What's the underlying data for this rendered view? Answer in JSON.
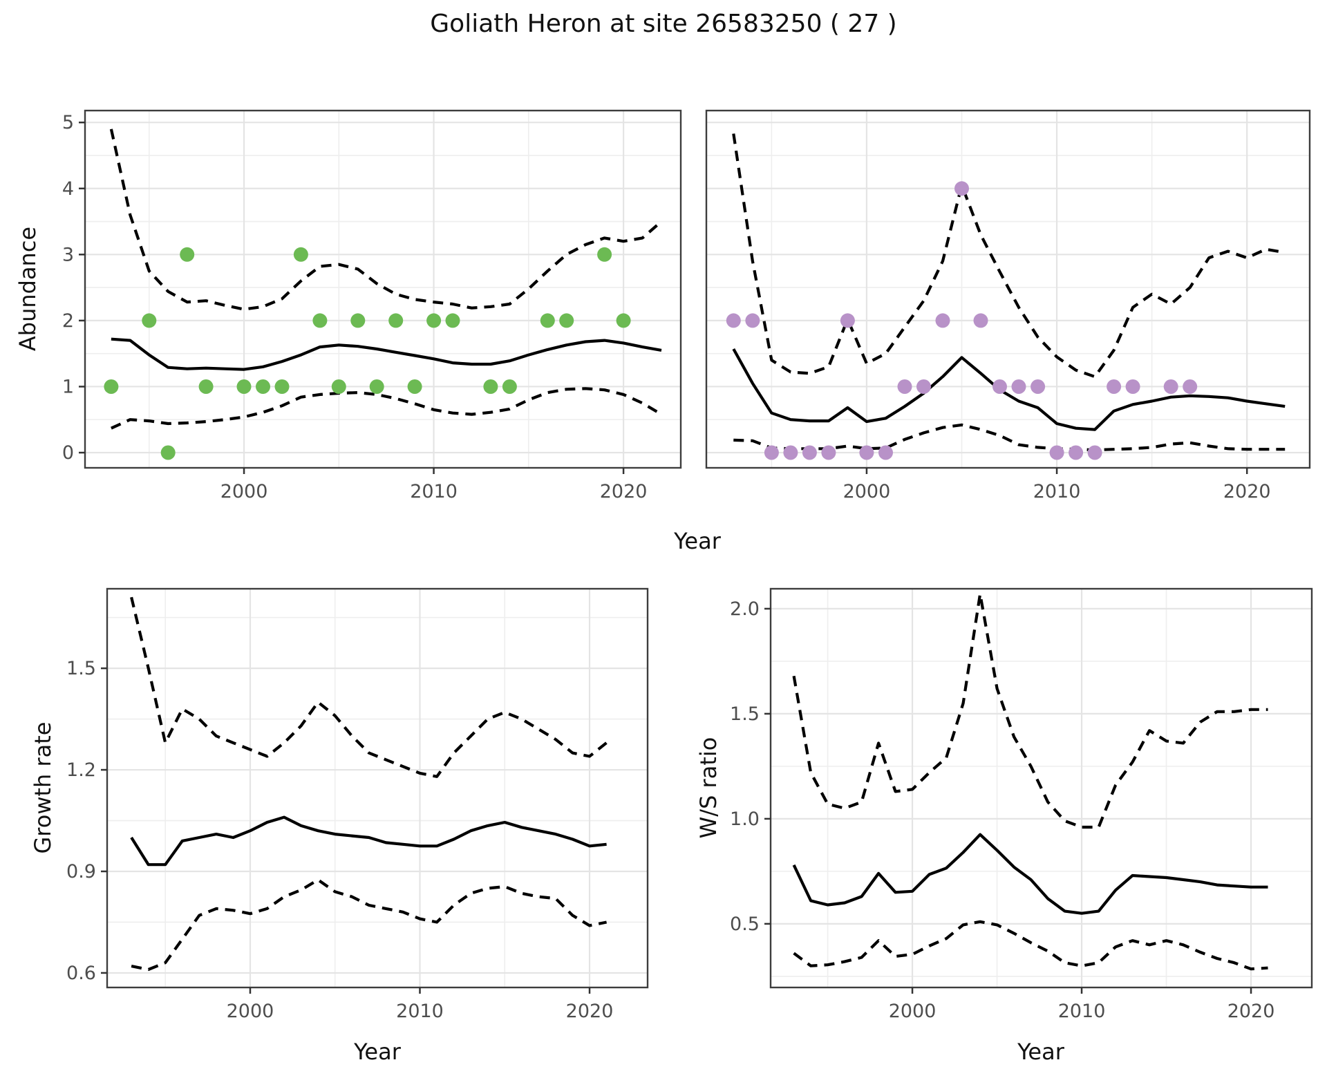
{
  "title": "Goliath Heron at site 26583250 ( 27 )",
  "axis_titles": {
    "top_y": "Abundance",
    "top_x": "Year",
    "growth_y": "Growth rate",
    "growth_x": "Year",
    "ws_y": "W/S ratio",
    "ws_x": "Year"
  },
  "colors": {
    "summer_points": "#6cba53",
    "winter_points": "#b892c8",
    "fit_line": "#000000",
    "ci_line": "#000000",
    "grid_major": "#e4e4e4",
    "grid_minor": "#eeeeee",
    "panel_border": "#3d3d3d",
    "strip_bg": "#d9d9d9",
    "strip_accent": "#2b2b2b",
    "axis_text": "#4d4d4d",
    "strip_text": "#1a1a1a",
    "tick_mark": "#333333"
  },
  "chart_data": [
    {
      "id": "abundance_summer",
      "type": "line",
      "facet": "summer",
      "ylabel": "Abundance",
      "xlabel": "Year",
      "xlim": [
        1991.62,
        2023.02
      ],
      "ylim": [
        -0.23,
        5.18
      ],
      "xticks": [
        2000,
        2010,
        2020
      ],
      "xminor": [
        1995,
        2005,
        2015
      ],
      "yticks": [
        0,
        1,
        2,
        3,
        4,
        5
      ],
      "yminor": [
        0.5,
        1.5,
        2.5,
        3.5,
        4.5
      ],
      "show_ylabels": true,
      "years": [
        1993,
        1994,
        1995,
        1996,
        1997,
        1998,
        1999,
        2000,
        2001,
        2002,
        2003,
        2004,
        2005,
        2006,
        2007,
        2008,
        2009,
        2010,
        2011,
        2012,
        2013,
        2014,
        2015,
        2016,
        2017,
        2018,
        2019,
        2020,
        2021,
        2022
      ],
      "series": [
        {
          "name": "mean fit",
          "style": "solid",
          "values": [
            1.72,
            1.7,
            1.48,
            1.29,
            1.27,
            1.28,
            1.27,
            1.26,
            1.3,
            1.38,
            1.48,
            1.6,
            1.63,
            1.61,
            1.57,
            1.52,
            1.47,
            1.42,
            1.36,
            1.34,
            1.34,
            1.39,
            1.48,
            1.56,
            1.63,
            1.68,
            1.7,
            1.66,
            1.6,
            1.55
          ]
        },
        {
          "name": "upper 95% CI",
          "style": "dashed",
          "values": [
            4.9,
            3.6,
            2.75,
            2.44,
            2.28,
            2.3,
            2.23,
            2.17,
            2.21,
            2.33,
            2.6,
            2.82,
            2.85,
            2.78,
            2.56,
            2.4,
            2.32,
            2.28,
            2.25,
            2.19,
            2.21,
            2.25,
            2.48,
            2.75,
            3.0,
            3.15,
            3.25,
            3.2,
            3.25,
            3.5
          ]
        },
        {
          "name": "lower 95% CI",
          "style": "dashed",
          "values": [
            0.37,
            0.5,
            0.48,
            0.44,
            0.45,
            0.47,
            0.5,
            0.54,
            0.61,
            0.71,
            0.84,
            0.88,
            0.9,
            0.91,
            0.88,
            0.82,
            0.74,
            0.65,
            0.6,
            0.58,
            0.61,
            0.66,
            0.8,
            0.91,
            0.96,
            0.97,
            0.95,
            0.88,
            0.75,
            0.58
          ]
        }
      ],
      "points": {
        "name": "summer observed counts",
        "color_key": "summer_points",
        "data": [
          [
            1993,
            1
          ],
          [
            1995,
            2
          ],
          [
            1996,
            0
          ],
          [
            1997,
            3
          ],
          [
            1998,
            1
          ],
          [
            2000,
            1
          ],
          [
            2001,
            1
          ],
          [
            2002,
            1
          ],
          [
            2003,
            3
          ],
          [
            2004,
            2
          ],
          [
            2005,
            1
          ],
          [
            2006,
            2
          ],
          [
            2007,
            1
          ],
          [
            2008,
            2
          ],
          [
            2009,
            1
          ],
          [
            2010,
            2
          ],
          [
            2011,
            2
          ],
          [
            2013,
            1
          ],
          [
            2014,
            1
          ],
          [
            2016,
            2
          ],
          [
            2017,
            2
          ],
          [
            2019,
            3
          ],
          [
            2020,
            2
          ]
        ]
      }
    },
    {
      "id": "abundance_winter",
      "type": "line",
      "facet": "winter",
      "ylabel": "Abundance",
      "xlabel": "Year",
      "xlim": [
        1991.57,
        2023.3
      ],
      "ylim": [
        -0.23,
        5.18
      ],
      "xticks": [
        2000,
        2010,
        2020
      ],
      "xminor": [
        1995,
        2005,
        2015
      ],
      "yticks": [
        0,
        1,
        2,
        3,
        4,
        5
      ],
      "yminor": [
        0.5,
        1.5,
        2.5,
        3.5,
        4.5
      ],
      "show_ylabels": false,
      "years": [
        1993,
        1994,
        1995,
        1996,
        1997,
        1998,
        1999,
        2000,
        2001,
        2002,
        2003,
        2004,
        2005,
        2006,
        2007,
        2008,
        2009,
        2010,
        2011,
        2012,
        2013,
        2014,
        2015,
        2016,
        2017,
        2018,
        2019,
        2020,
        2021,
        2022
      ],
      "series": [
        {
          "name": "mean fit",
          "style": "solid",
          "values": [
            1.57,
            1.05,
            0.6,
            0.5,
            0.48,
            0.48,
            0.68,
            0.47,
            0.52,
            0.7,
            0.9,
            1.15,
            1.44,
            1.2,
            0.95,
            0.78,
            0.68,
            0.44,
            0.37,
            0.35,
            0.63,
            0.73,
            0.78,
            0.84,
            0.86,
            0.85,
            0.83,
            0.78,
            0.74,
            0.7
          ]
        },
        {
          "name": "upper 95% CI",
          "style": "dashed",
          "values": [
            4.83,
            2.9,
            1.4,
            1.22,
            1.2,
            1.3,
            2.02,
            1.35,
            1.5,
            1.9,
            2.3,
            2.9,
            4.05,
            3.3,
            2.74,
            2.2,
            1.75,
            1.45,
            1.25,
            1.15,
            1.55,
            2.2,
            2.4,
            2.25,
            2.5,
            2.95,
            3.05,
            2.95,
            3.08,
            3.03
          ]
        },
        {
          "name": "lower 95% CI",
          "style": "dashed",
          "values": [
            0.19,
            0.18,
            0.07,
            0.06,
            0.06,
            0.06,
            0.1,
            0.06,
            0.07,
            0.2,
            0.3,
            0.38,
            0.42,
            0.35,
            0.26,
            0.12,
            0.08,
            0.06,
            0.05,
            0.04,
            0.05,
            0.06,
            0.08,
            0.13,
            0.15,
            0.1,
            0.06,
            0.05,
            0.05,
            0.05
          ]
        }
      ],
      "points": {
        "name": "winter observed counts",
        "color_key": "winter_points",
        "data": [
          [
            1993,
            2
          ],
          [
            1994,
            2
          ],
          [
            1995,
            0
          ],
          [
            1996,
            0
          ],
          [
            1997,
            0
          ],
          [
            1998,
            0
          ],
          [
            1999,
            2
          ],
          [
            2000,
            0
          ],
          [
            2001,
            0
          ],
          [
            2002,
            1
          ],
          [
            2003,
            1
          ],
          [
            2004,
            2
          ],
          [
            2005,
            4
          ],
          [
            2006,
            2
          ],
          [
            2007,
            1
          ],
          [
            2008,
            1
          ],
          [
            2009,
            1
          ],
          [
            2010,
            0
          ],
          [
            2011,
            0
          ],
          [
            2012,
            0
          ],
          [
            2013,
            1
          ],
          [
            2014,
            1
          ],
          [
            2016,
            1
          ],
          [
            2017,
            1
          ]
        ]
      }
    },
    {
      "id": "growth_rate",
      "type": "line",
      "facet": null,
      "ylabel": "Growth rate",
      "xlabel": "Year",
      "xlim": [
        1991.57,
        2023.42
      ],
      "ylim": [
        0.557,
        1.735
      ],
      "xticks": [
        2000,
        2010,
        2020
      ],
      "xminor": [
        1995,
        2005,
        2015
      ],
      "yticks": [
        0.6,
        0.9,
        1.2,
        1.5
      ],
      "yminor": [
        0.75,
        1.05,
        1.35,
        1.65
      ],
      "show_ylabels": true,
      "years": [
        1993,
        1994,
        1995,
        1996,
        1997,
        1998,
        1999,
        2000,
        2001,
        2002,
        2003,
        2004,
        2005,
        2006,
        2007,
        2008,
        2009,
        2010,
        2011,
        2012,
        2013,
        2014,
        2015,
        2016,
        2017,
        2018,
        2019,
        2020,
        2021
      ],
      "series": [
        {
          "name": "mean fit",
          "style": "solid",
          "values": [
            1.0,
            0.92,
            0.92,
            0.99,
            1.0,
            1.01,
            1.0,
            1.02,
            1.045,
            1.06,
            1.035,
            1.02,
            1.01,
            1.005,
            1.0,
            0.985,
            0.98,
            0.975,
            0.975,
            0.995,
            1.02,
            1.035,
            1.045,
            1.03,
            1.02,
            1.01,
            0.995,
            0.975,
            0.98
          ]
        },
        {
          "name": "upper 95% CI",
          "style": "dashed",
          "values": [
            1.71,
            1.5,
            1.28,
            1.38,
            1.35,
            1.3,
            1.28,
            1.26,
            1.24,
            1.28,
            1.33,
            1.4,
            1.36,
            1.3,
            1.25,
            1.23,
            1.21,
            1.19,
            1.18,
            1.25,
            1.3,
            1.35,
            1.37,
            1.35,
            1.32,
            1.29,
            1.25,
            1.24,
            1.28
          ]
        },
        {
          "name": "lower 95% CI",
          "style": "dashed",
          "values": [
            0.62,
            0.61,
            0.63,
            0.7,
            0.77,
            0.79,
            0.785,
            0.775,
            0.79,
            0.825,
            0.845,
            0.875,
            0.84,
            0.825,
            0.8,
            0.79,
            0.78,
            0.76,
            0.75,
            0.8,
            0.835,
            0.85,
            0.855,
            0.835,
            0.825,
            0.82,
            0.77,
            0.74,
            0.75
          ]
        }
      ],
      "points": null
    },
    {
      "id": "ws_ratio",
      "type": "line",
      "facet": null,
      "ylabel": "W/S ratio",
      "xlabel": "Year",
      "xlim": [
        1991.63,
        2023.59
      ],
      "ylim": [
        0.197,
        2.095
      ],
      "xticks": [
        2000,
        2010,
        2020
      ],
      "xminor": [
        1995,
        2005,
        2015
      ],
      "yticks": [
        0.5,
        1.0,
        1.5,
        2.0
      ],
      "yminor": [
        0.25,
        0.75,
        1.25,
        1.75
      ],
      "show_ylabels": true,
      "years": [
        1993,
        1994,
        1995,
        1996,
        1997,
        1998,
        1999,
        2000,
        2001,
        2002,
        2003,
        2004,
        2005,
        2006,
        2007,
        2008,
        2009,
        2010,
        2011,
        2012,
        2013,
        2014,
        2015,
        2016,
        2017,
        2018,
        2019,
        2020,
        2021
      ],
      "series": [
        {
          "name": "mean fit",
          "style": "solid",
          "values": [
            0.78,
            0.61,
            0.59,
            0.6,
            0.63,
            0.74,
            0.65,
            0.655,
            0.735,
            0.765,
            0.84,
            0.925,
            0.85,
            0.77,
            0.71,
            0.62,
            0.56,
            0.55,
            0.56,
            0.66,
            0.73,
            0.725,
            0.72,
            0.71,
            0.7,
            0.685,
            0.68,
            0.675,
            0.675
          ]
        },
        {
          "name": "upper 95% CI",
          "style": "dashed",
          "values": [
            1.68,
            1.22,
            1.07,
            1.05,
            1.08,
            1.36,
            1.13,
            1.14,
            1.22,
            1.29,
            1.55,
            2.07,
            1.62,
            1.39,
            1.25,
            1.08,
            0.99,
            0.96,
            0.96,
            1.16,
            1.27,
            1.42,
            1.37,
            1.36,
            1.46,
            1.51,
            1.51,
            1.52,
            1.52
          ]
        },
        {
          "name": "lower 95% CI",
          "style": "dashed",
          "values": [
            0.36,
            0.3,
            0.305,
            0.32,
            0.34,
            0.42,
            0.345,
            0.355,
            0.395,
            0.43,
            0.495,
            0.51,
            0.495,
            0.455,
            0.41,
            0.37,
            0.315,
            0.3,
            0.315,
            0.39,
            0.42,
            0.4,
            0.42,
            0.4,
            0.365,
            0.335,
            0.315,
            0.285,
            0.29
          ]
        }
      ],
      "points": null
    }
  ]
}
